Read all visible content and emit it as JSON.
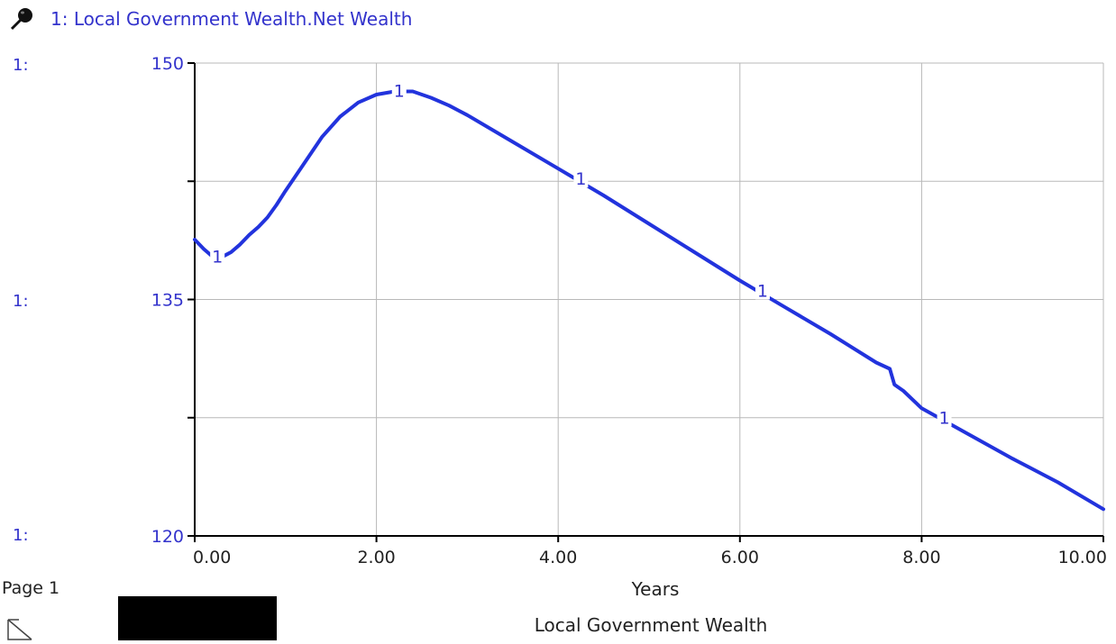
{
  "legend": {
    "series_label": "1: Local Government Wealth.Net Wealth"
  },
  "axis": {
    "series_prefix": "1:"
  },
  "footer": {
    "page_label": "Page 1",
    "page_title": "Local Government Wealth"
  },
  "colors": {
    "series": "#2233dd",
    "axis_text": "#3333cc",
    "grid": "#b8b8b8"
  },
  "chart_data": {
    "type": "line",
    "title": "Local Government Wealth",
    "xlabel": "Years",
    "ylabel": "",
    "xlim": [
      0,
      10
    ],
    "ylim": [
      120,
      150
    ],
    "xticks": [
      "0.00",
      "2.00",
      "4.00",
      "6.00",
      "8.00",
      "10.00"
    ],
    "yticks": [
      "120",
      "135",
      "150"
    ],
    "grid": true,
    "series": [
      {
        "name": "Local Government Wealth.Net Wealth",
        "marker_label": "1",
        "marker_x": [
          0.2,
          2.2,
          4.2,
          6.2,
          8.2
        ],
        "x": [
          0,
          0.1,
          0.2,
          0.3,
          0.4,
          0.5,
          0.6,
          0.7,
          0.8,
          0.9,
          1.0,
          1.2,
          1.4,
          1.6,
          1.8,
          2.0,
          2.2,
          2.4,
          2.6,
          2.8,
          3.0,
          3.5,
          4.0,
          4.5,
          5.0,
          5.5,
          6.0,
          6.5,
          7.0,
          7.5,
          7.65,
          7.7,
          7.8,
          8.0,
          8.5,
          9.0,
          9.5,
          10.0
        ],
        "y": [
          138.8,
          138.2,
          137.7,
          137.7,
          138.0,
          138.5,
          139.1,
          139.6,
          140.2,
          141.0,
          141.9,
          143.6,
          145.3,
          146.6,
          147.5,
          148.0,
          148.2,
          148.2,
          147.8,
          147.3,
          146.7,
          145.0,
          143.3,
          141.6,
          139.8,
          138.0,
          136.2,
          134.5,
          132.8,
          131.0,
          130.6,
          129.6,
          129.2,
          128.1,
          126.5,
          124.9,
          123.4,
          121.7
        ]
      }
    ]
  }
}
